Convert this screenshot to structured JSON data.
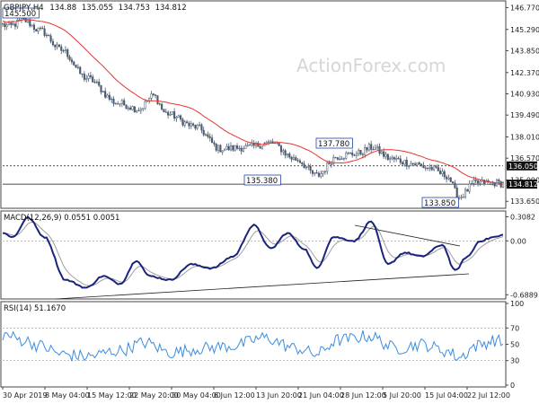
{
  "chart_data": [
    {
      "type": "candlestick",
      "panel": "price",
      "title": "GBPJPY,H4",
      "ohlc": {
        "open": 134.88,
        "high": 135.055,
        "low": 134.753,
        "close": 134.812
      },
      "y_ticks": [
        146.77,
        145.29,
        143.85,
        142.37,
        140.93,
        139.49,
        138.01,
        136.57,
        135.09,
        133.65
      ],
      "ylim": [
        133.3,
        147.1
      ],
      "ma_color": "#e8332e",
      "bar_color": "#4a5a6e",
      "annotations": [
        {
          "text": "145.500",
          "value": 145.5,
          "x_label_index": 0
        },
        {
          "text": "137.780",
          "value": 137.78,
          "x_label_index": 8
        },
        {
          "text": "135.380",
          "value": 135.38,
          "x_label_index": 6
        },
        {
          "text": "133.850",
          "value": 133.85,
          "x_label_index": 10
        }
      ],
      "level_lines": [
        {
          "value": 136.05,
          "label": "136.050",
          "color": "#111111"
        },
        {
          "value": 134.812,
          "label": "134.812",
          "color": "#111111"
        }
      ]
    },
    {
      "type": "line",
      "panel": "macd",
      "title": "MACD(12,26,9) 0.0551 0.0051",
      "y_ticks": [
        0.3082,
        0.0,
        -0.6889
      ],
      "ylim": [
        -0.72,
        0.36
      ],
      "macd_color": "#1a237e",
      "signal_color": "#9e9e9e"
    },
    {
      "type": "line",
      "panel": "rsi",
      "title": "RSI(14) 51.1670",
      "y_ticks": [
        100,
        70,
        50,
        30,
        0
      ],
      "ylim": [
        0,
        100
      ],
      "line_color": "#3b8de0"
    }
  ],
  "x_labels": [
    "30 Apr 2019",
    "8 May 04:00",
    "15 May 12:00",
    "22 May 20:00",
    "30 May 04:00",
    "6 Jun 12:00",
    "13 Jun 20:00",
    "21 Jun 04:00",
    "28 Jun 12:00",
    "5 Jul 20:00",
    "15 Jul 04:00",
    "22 Jul 12:00"
  ],
  "watermark": "ActionForex.com"
}
